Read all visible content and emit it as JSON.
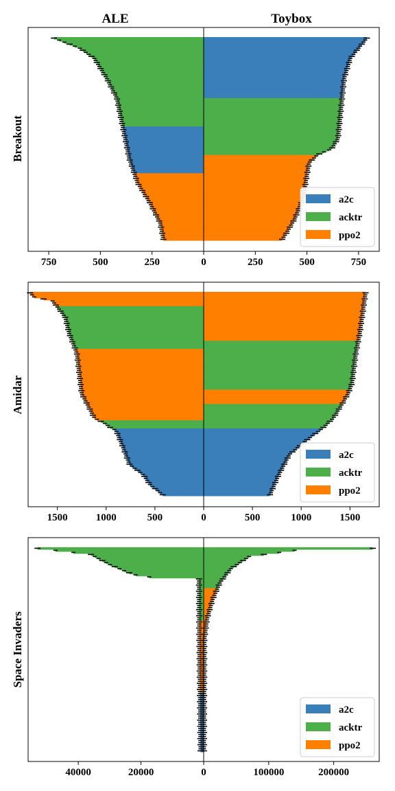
{
  "column_titles": {
    "left": "ALE",
    "right": "Toybox"
  },
  "row_labels": {
    "breakout": "Breakout",
    "amidar": "Amidar",
    "space_invaders": "Space Invaders"
  },
  "colors": {
    "a2c": "#3a7eba",
    "acktr": "#4daf4a",
    "ppo2": "#ff7f00",
    "error": "#000000"
  },
  "chart_data": [
    {
      "type": "bar",
      "orientation": "horizontal-back-to-back",
      "game": "Breakout",
      "legend": [
        "a2c",
        "acktr",
        "ppo2"
      ],
      "legend_position": "lower-right",
      "left": {
        "title": "ALE",
        "xticks": [
          750,
          500,
          250,
          0
        ],
        "xlim": [
          0,
          850
        ],
        "profile_rank_to_score": [
          [
            0,
            725
          ],
          [
            0.05,
            600
          ],
          [
            0.1,
            530
          ],
          [
            0.2,
            470
          ],
          [
            0.3,
            420
          ],
          [
            0.45,
            390
          ],
          [
            0.6,
            360
          ],
          [
            0.72,
            320
          ],
          [
            0.82,
            260
          ],
          [
            0.92,
            210
          ],
          [
            1,
            195
          ]
        ],
        "rank_segments": [
          [
            "acktr",
            0,
            0.23
          ],
          [
            "acktr",
            0.23,
            0.44
          ],
          [
            "a2c",
            0.44,
            0.67
          ],
          [
            "ppo2",
            0.67,
            1
          ]
        ]
      },
      "right": {
        "title": "Toybox",
        "xticks": [
          0,
          250,
          500,
          750
        ],
        "xlim": [
          0,
          850
        ],
        "profile_rank_to_score": [
          [
            0,
            790
          ],
          [
            0.1,
            710
          ],
          [
            0.2,
            680
          ],
          [
            0.5,
            650
          ],
          [
            0.55,
            620
          ],
          [
            0.58,
            550
          ],
          [
            0.62,
            510
          ],
          [
            0.8,
            480
          ],
          [
            0.9,
            440
          ],
          [
            0.97,
            400
          ],
          [
            1,
            380
          ]
        ],
        "rank_segments": [
          [
            "a2c",
            0,
            0.3
          ],
          [
            "acktr",
            0.3,
            0.58
          ],
          [
            "ppo2",
            0.58,
            1
          ]
        ]
      }
    },
    {
      "type": "bar",
      "orientation": "horizontal-back-to-back",
      "game": "Amidar",
      "legend": [
        "a2c",
        "acktr",
        "ppo2"
      ],
      "legend_position": "lower-right",
      "left": {
        "title": "ALE",
        "xticks": [
          1500,
          1000,
          500,
          0
        ],
        "xlim": [
          0,
          1800
        ],
        "profile_rank_to_score": [
          [
            0,
            1780
          ],
          [
            0.02,
            1740
          ],
          [
            0.04,
            1550
          ],
          [
            0.12,
            1420
          ],
          [
            0.2,
            1380
          ],
          [
            0.3,
            1300
          ],
          [
            0.5,
            1250
          ],
          [
            0.62,
            1120
          ],
          [
            0.65,
            1000
          ],
          [
            0.67,
            950
          ],
          [
            0.68,
            900
          ],
          [
            0.75,
            840
          ],
          [
            0.85,
            760
          ],
          [
            0.9,
            620
          ],
          [
            0.95,
            550
          ],
          [
            1,
            420
          ]
        ],
        "rank_segments": [
          [
            "acktr",
            0,
            0.04
          ],
          [
            "ppo2",
            0,
            0.07
          ],
          [
            "acktr",
            0.07,
            0.28
          ],
          [
            "ppo2",
            0.28,
            0.63
          ],
          [
            "acktr",
            0.63,
            0.67
          ],
          [
            "a2c",
            0.67,
            1
          ]
        ]
      },
      "right": {
        "title": "Toybox",
        "xticks": [
          0,
          500,
          1000,
          1500
        ],
        "xlim": [
          0,
          1800
        ],
        "profile_rank_to_score": [
          [
            0,
            1660
          ],
          [
            0.2,
            1600
          ],
          [
            0.3,
            1560
          ],
          [
            0.45,
            1520
          ],
          [
            0.5,
            1480
          ],
          [
            0.55,
            1420
          ],
          [
            0.62,
            1330
          ],
          [
            0.67,
            1220
          ],
          [
            0.72,
            1080
          ],
          [
            0.8,
            880
          ],
          [
            0.9,
            770
          ],
          [
            1,
            680
          ]
        ],
        "rank_segments": [
          [
            "ppo2",
            0,
            0.24
          ],
          [
            "acktr",
            0.24,
            0.48
          ],
          [
            "ppo2",
            0.48,
            0.55
          ],
          [
            "acktr",
            0.55,
            0.67
          ],
          [
            "a2c",
            0.67,
            1
          ]
        ]
      }
    },
    {
      "type": "bar",
      "orientation": "horizontal-back-to-back",
      "game": "Space Invaders",
      "legend": [
        "a2c",
        "acktr",
        "ppo2"
      ],
      "legend_position": "lower-right",
      "left": {
        "title": "ALE",
        "xticks": [
          40000,
          20000,
          0
        ],
        "xlim": [
          0,
          56000
        ],
        "profile_rank_to_score": [
          [
            0,
            53000
          ],
          [
            0.03,
            36000
          ],
          [
            0.08,
            30000
          ],
          [
            0.12,
            24000
          ],
          [
            0.14,
            20000
          ],
          [
            0.15,
            1500
          ],
          [
            0.4,
            1400
          ],
          [
            0.7,
            1200
          ],
          [
            1,
            1000
          ]
        ],
        "rank_segments": [
          [
            "acktr",
            0,
            0.15
          ],
          [
            "acktr",
            0.15,
            0.36
          ],
          [
            "ppo2",
            0.36,
            0.71
          ],
          [
            "a2c",
            0.71,
            1
          ]
        ]
      },
      "right": {
        "title": "Toybox",
        "xticks": [
          0,
          100000,
          200000
        ],
        "xlim": [
          0,
          270000
        ],
        "profile_rank_to_score": [
          [
            0,
            260000
          ],
          [
            0.01,
            140000
          ],
          [
            0.04,
            70000
          ],
          [
            0.1,
            42000
          ],
          [
            0.17,
            25000
          ],
          [
            0.25,
            14000
          ],
          [
            0.35,
            5000
          ],
          [
            0.45,
            1000
          ],
          [
            1,
            400
          ]
        ],
        "rank_segments": [
          [
            "acktr",
            0,
            0.03
          ],
          [
            "acktr",
            0.03,
            0.2
          ],
          [
            "ppo2",
            0.2,
            0.6
          ],
          [
            "ppo2",
            0.6,
            1
          ]
        ]
      }
    }
  ]
}
